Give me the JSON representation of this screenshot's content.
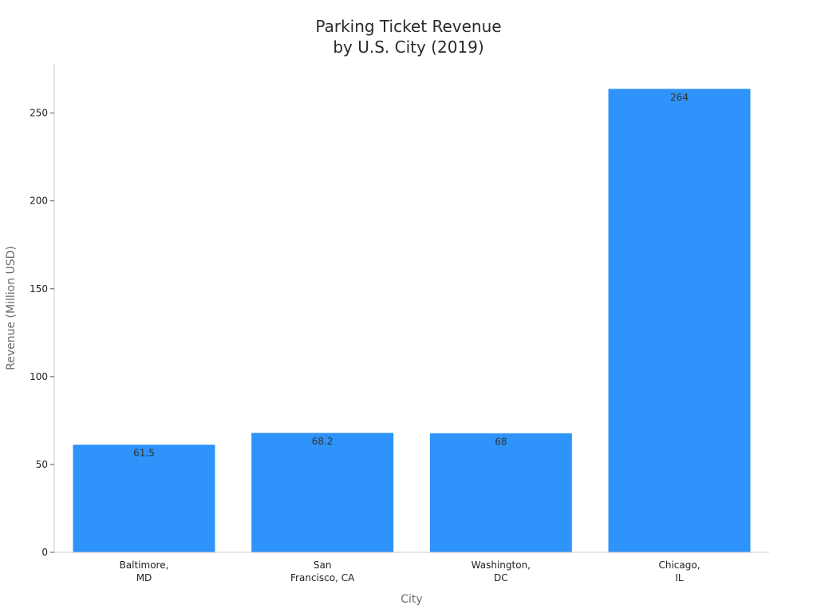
{
  "chart_data": {
    "type": "bar",
    "title": [
      "Parking Ticket Revenue",
      "by U.S. City (2019)"
    ],
    "xlabel": "City",
    "ylabel": "Revenue (Million USD)",
    "categories": [
      [
        "Baltimore,",
        "MD"
      ],
      [
        "San",
        "Francisco, CA"
      ],
      [
        "Washington,",
        "DC"
      ],
      [
        "Chicago,",
        "IL"
      ]
    ],
    "values": [
      61.5,
      68.2,
      68,
      264
    ],
    "data_labels": [
      "61.5",
      "68.2",
      "68",
      "264"
    ],
    "yticks": [
      0,
      50,
      100,
      150,
      200,
      250
    ],
    "ytick_labels": [
      "0",
      "50",
      "100",
      "150",
      "200",
      "250"
    ],
    "ylim": [
      0,
      278
    ],
    "grid": false,
    "bar_color": "#2e93fa",
    "bar_edge_color": "#ffffff"
  }
}
